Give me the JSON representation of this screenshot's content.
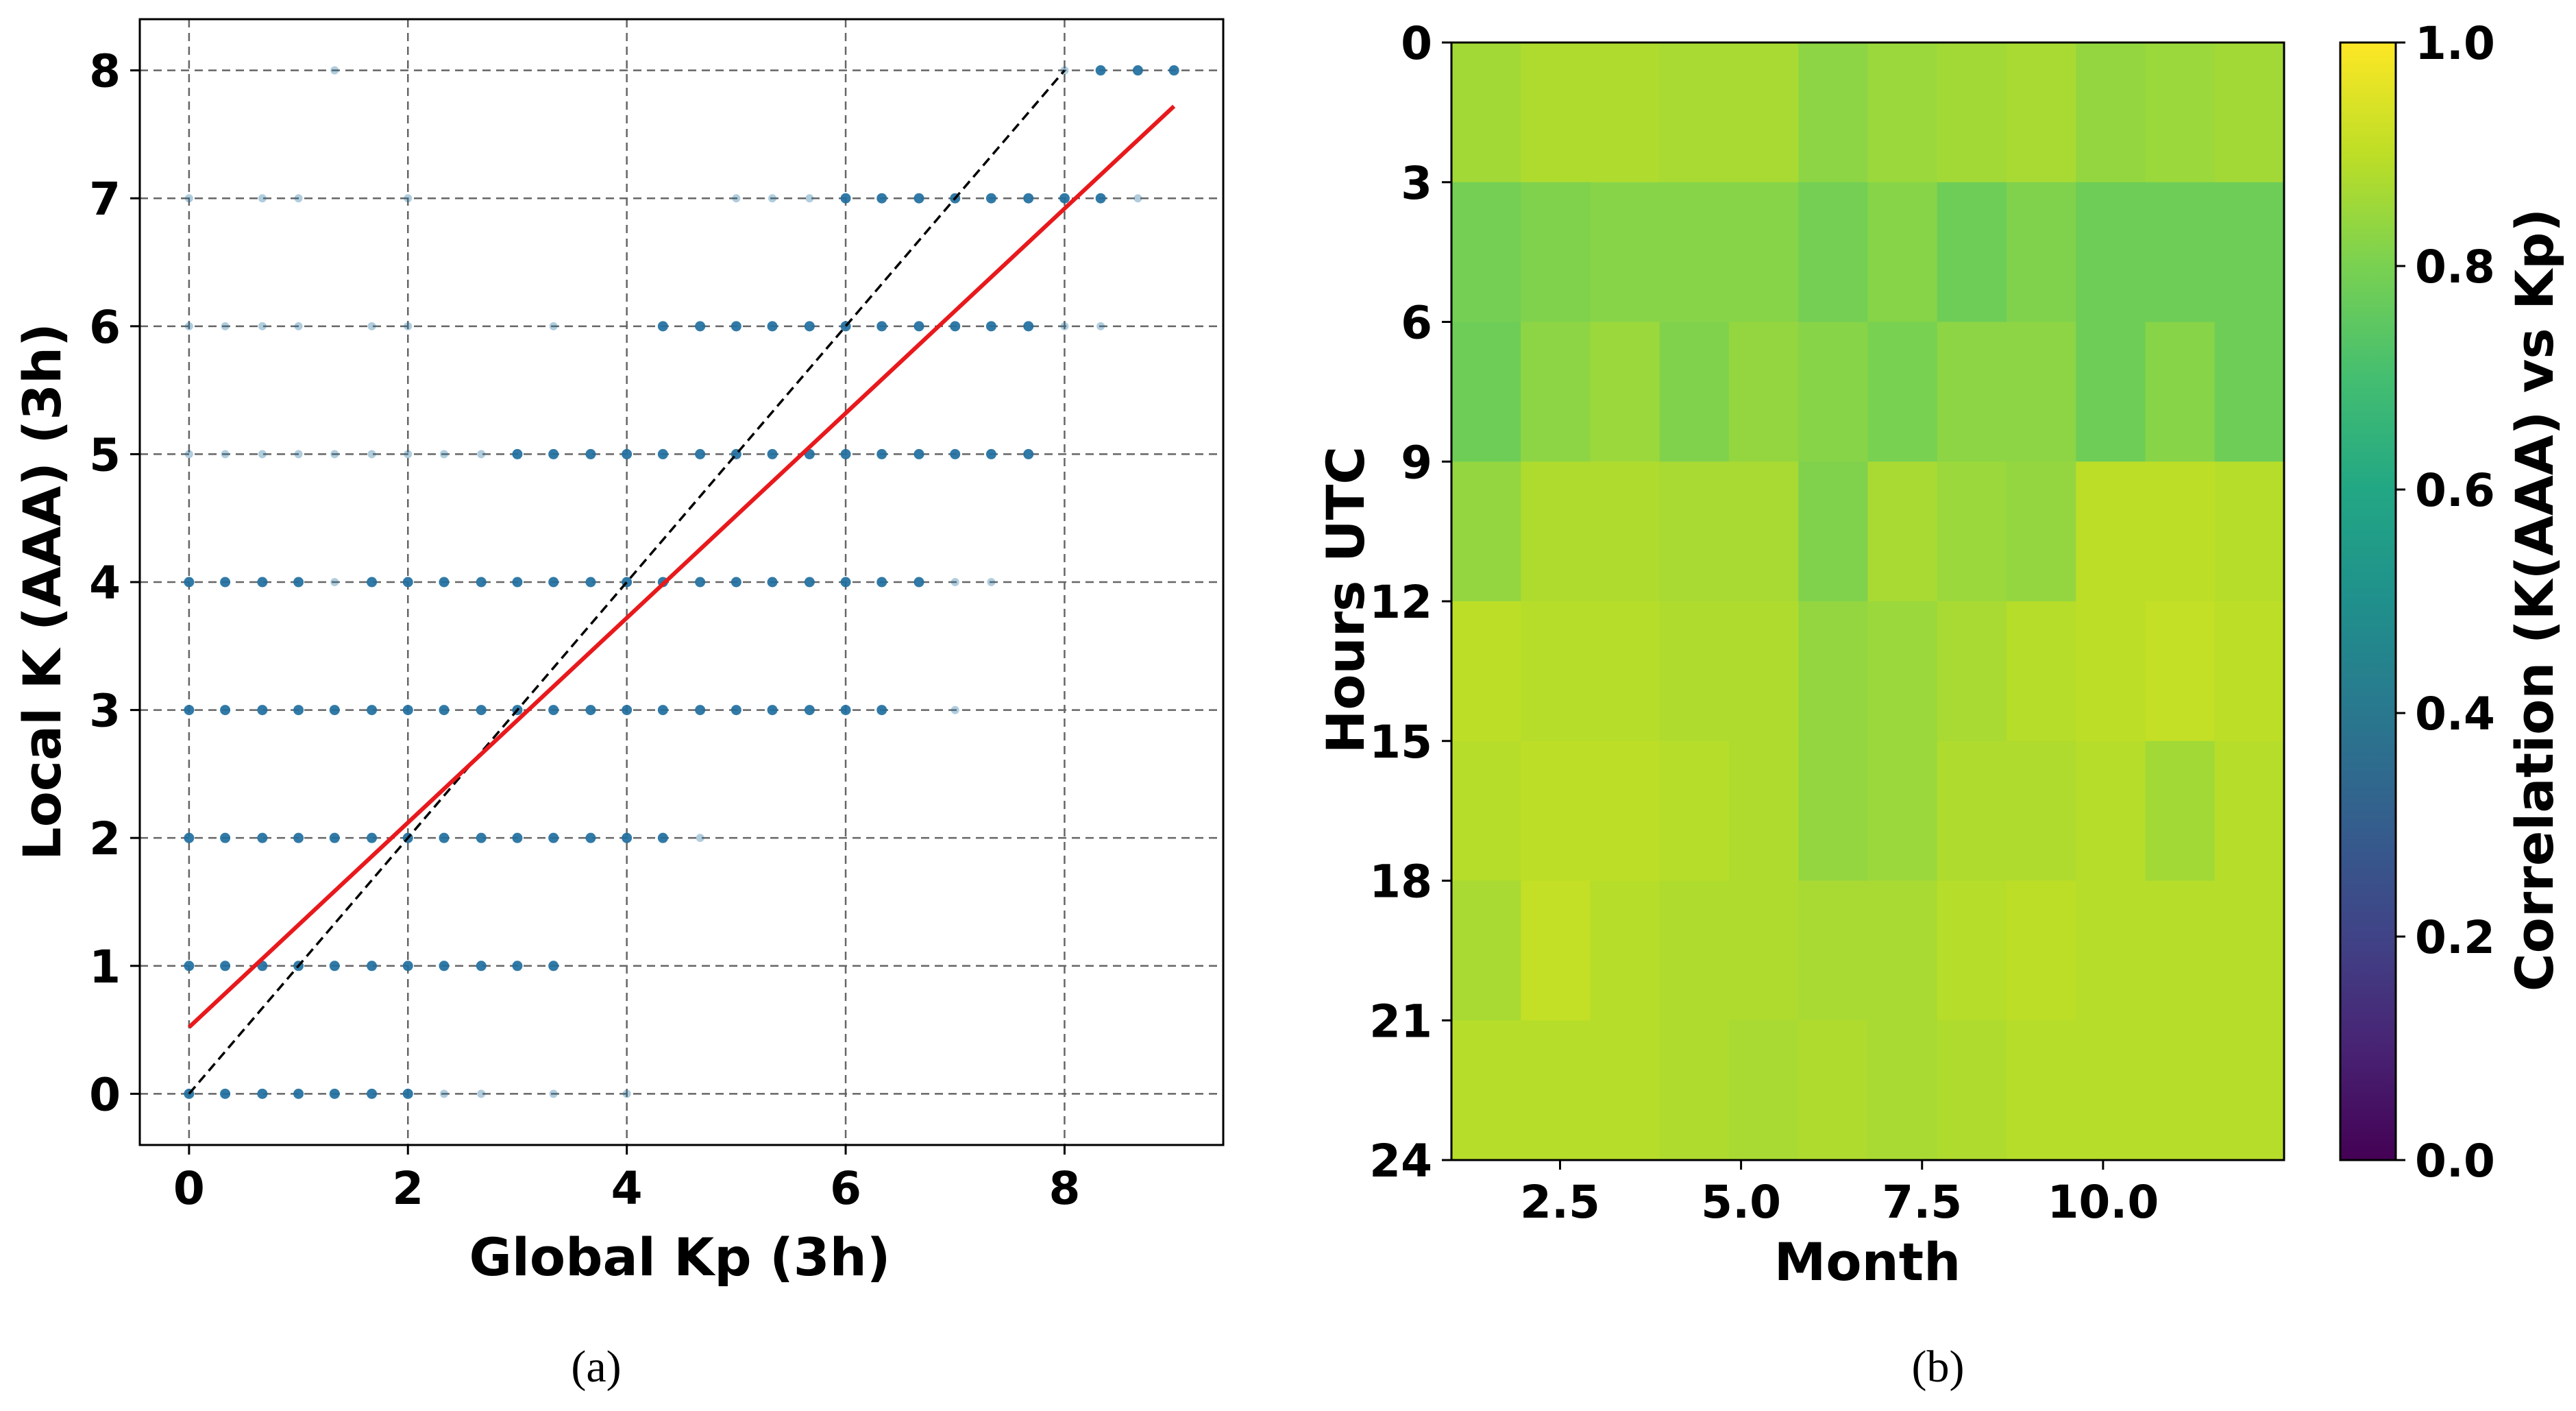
{
  "chart_data": [
    {
      "type": "scatter",
      "panel_label": "(a)",
      "xlabel": "Global Kp (3h)",
      "ylabel": "Local K (AAA) (3h)",
      "xlim": [
        -0.45,
        9.45
      ],
      "ylim": [
        -0.4,
        8.4
      ],
      "xticks": [
        "0",
        "2",
        "4",
        "6",
        "8"
      ],
      "yticks": [
        "0",
        "1",
        "2",
        "3",
        "4",
        "5",
        "6",
        "7",
        "8"
      ],
      "grid": true,
      "marker_color": "#1f6f9f",
      "points": [
        {
          "k": 0,
          "kp": [
            0,
            0.33,
            0.67,
            1,
            1.33,
            1.67,
            2
          ],
          "faint": [
            2.33,
            2.67,
            3.33,
            4
          ]
        },
        {
          "k": 1,
          "kp": [
            0,
            0.33,
            0.67,
            1,
            1.33,
            1.67,
            2,
            2.33,
            2.67,
            3,
            3.33
          ],
          "faint": []
        },
        {
          "k": 2,
          "kp": [
            0,
            0.33,
            0.67,
            1,
            1.33,
            1.67,
            2,
            2.33,
            2.67,
            3,
            3.33,
            3.67,
            4,
            4.33
          ],
          "faint": [
            4.67
          ]
        },
        {
          "k": 3,
          "kp": [
            0,
            0.33,
            0.67,
            1,
            1.33,
            1.67,
            2,
            2.33,
            2.67,
            3,
            3.33,
            3.67,
            4,
            4.33,
            4.67,
            5,
            5.33,
            5.67,
            6,
            6.33
          ],
          "faint": [
            7
          ]
        },
        {
          "k": 4,
          "kp": [
            0,
            0.33,
            0.67,
            1,
            1.67,
            2,
            2.33,
            2.67,
            3,
            3.33,
            3.67,
            4,
            4.33,
            4.67,
            5,
            5.33,
            5.67,
            6,
            6.33,
            6.67
          ],
          "faint": [
            1.33,
            7,
            7.33
          ]
        },
        {
          "k": 5,
          "kp": [
            3,
            3.33,
            3.67,
            4,
            4.33,
            4.67,
            5,
            5.33,
            5.67,
            6,
            6.33,
            6.67,
            7,
            7.33,
            7.67
          ],
          "faint": [
            0,
            0.33,
            0.67,
            1,
            1.33,
            1.67,
            2,
            2.33,
            2.67
          ]
        },
        {
          "k": 6,
          "kp": [
            4.33,
            4.67,
            5,
            5.33,
            5.67,
            6,
            6.33,
            6.67,
            7,
            7.33,
            7.67
          ],
          "faint": [
            0,
            0.33,
            0.67,
            1,
            1.67,
            2,
            3.33,
            8,
            8.33
          ]
        },
        {
          "k": 7,
          "kp": [
            6,
            6.33,
            6.67,
            7,
            7.33,
            7.67,
            8,
            8.33
          ],
          "faint": [
            0,
            0.67,
            1,
            2,
            5,
            5.33,
            5.67,
            8.67
          ]
        },
        {
          "k": 8,
          "kp": [
            8.33,
            8.67,
            9
          ],
          "faint": [
            1.33,
            8
          ]
        }
      ],
      "identity_line": {
        "x": [
          0,
          8
        ],
        "y": [
          0,
          8
        ],
        "color": "#000000",
        "style": "dashed"
      },
      "fit_line": {
        "x": [
          0,
          9
        ],
        "y": [
          0.52,
          7.72
        ],
        "color": "#e8191c"
      }
    },
    {
      "type": "heatmap",
      "panel_label": "(b)",
      "xlabel": "Month",
      "ylabel": "Hours UTC",
      "x_extent": [
        1,
        12.5
      ],
      "y_extent": [
        24,
        0
      ],
      "xticks": [
        "2.5",
        "5.0",
        "7.5",
        "10.0"
      ],
      "yticks": [
        "0",
        "3",
        "6",
        "9",
        "12",
        "15",
        "18",
        "21",
        "24"
      ],
      "colorbar_label": "Correlation (K(AAA) vs Kp)",
      "colorbar_ticks": [
        "0.0",
        "0.2",
        "0.4",
        "0.6",
        "0.8",
        "1.0"
      ],
      "colormap": "viridis",
      "vmin": 0,
      "vmax": 1,
      "rows_hours_start": [
        0,
        3,
        6,
        9,
        12,
        15,
        18,
        21
      ],
      "columns_month": [
        1,
        2,
        3,
        4,
        5,
        6,
        7,
        8,
        9,
        10,
        11,
        12
      ],
      "values": [
        [
          0.86,
          0.88,
          0.88,
          0.87,
          0.87,
          0.83,
          0.85,
          0.86,
          0.87,
          0.84,
          0.85,
          0.86
        ],
        [
          0.79,
          0.81,
          0.82,
          0.82,
          0.82,
          0.79,
          0.82,
          0.78,
          0.81,
          0.78,
          0.78,
          0.78
        ],
        [
          0.78,
          0.83,
          0.85,
          0.81,
          0.84,
          0.82,
          0.8,
          0.83,
          0.83,
          0.78,
          0.82,
          0.78
        ],
        [
          0.84,
          0.88,
          0.88,
          0.87,
          0.87,
          0.81,
          0.87,
          0.85,
          0.84,
          0.9,
          0.9,
          0.89
        ],
        [
          0.9,
          0.89,
          0.89,
          0.88,
          0.88,
          0.84,
          0.85,
          0.87,
          0.89,
          0.9,
          0.91,
          0.9
        ],
        [
          0.89,
          0.9,
          0.9,
          0.89,
          0.88,
          0.84,
          0.85,
          0.88,
          0.88,
          0.89,
          0.86,
          0.89
        ],
        [
          0.87,
          0.91,
          0.89,
          0.88,
          0.88,
          0.87,
          0.87,
          0.89,
          0.9,
          0.89,
          0.89,
          0.89
        ],
        [
          0.89,
          0.89,
          0.89,
          0.88,
          0.87,
          0.88,
          0.87,
          0.88,
          0.89,
          0.89,
          0.89,
          0.89
        ]
      ]
    }
  ]
}
